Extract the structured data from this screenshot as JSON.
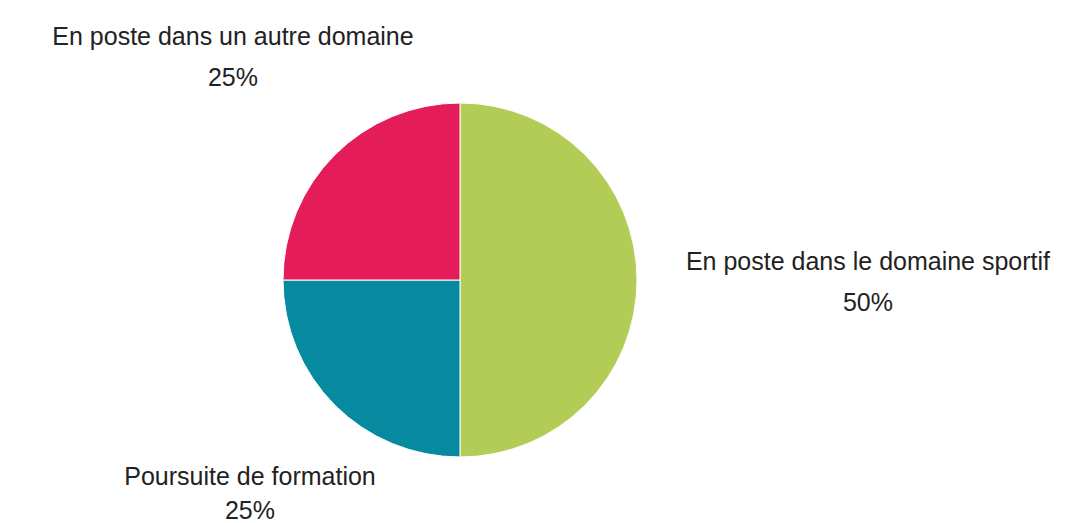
{
  "chart_data": {
    "type": "pie",
    "categories": [
      "En poste dans le domaine sportif",
      "Poursuite de formation",
      "En poste dans un autre domaine"
    ],
    "values": [
      50,
      25,
      25
    ],
    "value_labels": [
      "50%",
      "25%",
      "25%"
    ],
    "colors": [
      "#b2cc55",
      "#0789a0",
      "#e51c5a"
    ],
    "data_labels": true
  }
}
